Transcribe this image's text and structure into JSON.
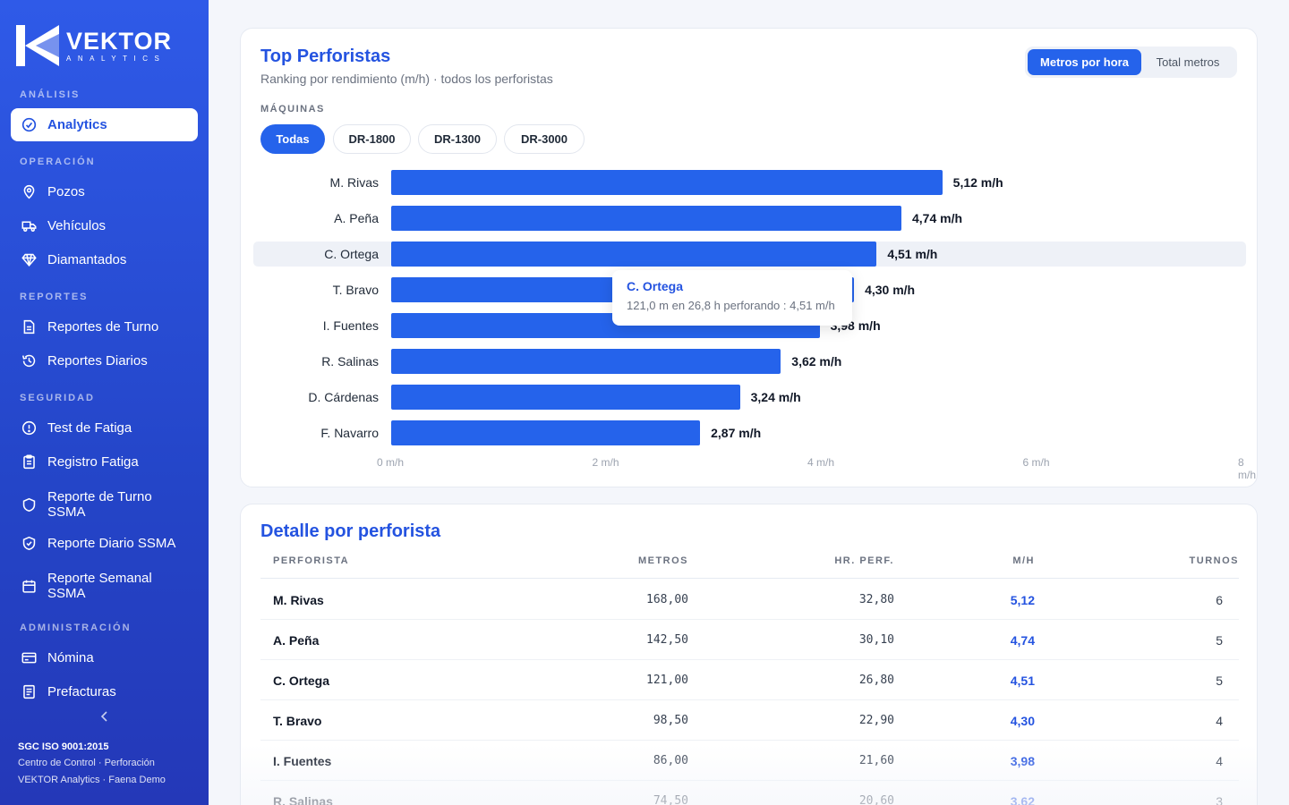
{
  "brand": {
    "name": "VEKTOR",
    "sub": "ANALYTICS"
  },
  "sidebar": {
    "sections": {
      "analisis": "ANÁLISIS",
      "operacion": "OPERACIÓN",
      "reportes": "REPORTES",
      "seguridad": "SEGURIDAD",
      "admin": "ADMINISTRACIÓN"
    },
    "items": [
      {
        "label": "Analytics",
        "icon": "check-circle-icon"
      },
      {
        "label": "Pozos",
        "icon": "map-pin-icon"
      },
      {
        "label": "Vehículos",
        "icon": "truck-icon"
      },
      {
        "label": "Diamantados",
        "icon": "diamond-icon"
      },
      {
        "label": "Reportes de Turno",
        "icon": "document-icon"
      },
      {
        "label": "Reportes Diarios",
        "icon": "history-icon"
      },
      {
        "label": "Test de Fatiga",
        "icon": "alert-circle-icon"
      },
      {
        "label": "Registro Fatiga",
        "icon": "clipboard-icon"
      },
      {
        "label": "Reporte de Turno SSMA",
        "icon": "shield-icon"
      },
      {
        "label": "Reporte Diario SSMA",
        "icon": "shield-check-icon"
      },
      {
        "label": "Reporte Semanal SSMA",
        "icon": "calendar-icon"
      },
      {
        "label": "Nómina",
        "icon": "card-icon"
      },
      {
        "label": "Prefacturas",
        "icon": "invoice-icon"
      }
    ],
    "footer": {
      "line1": "SGC ISO 9001:2015",
      "line2": "Centro de Control · Perforación",
      "line3": "VEKTOR Analytics · Faena Demo"
    }
  },
  "top": {
    "title": "Top Perforistas",
    "subtitle": "Ranking por rendimiento (m/h) · todos los perforistas",
    "toggle": {
      "active": "Metros por hora",
      "inactive": "Total metros"
    },
    "machines_label": "MÁQUINAS",
    "machines": [
      "Todas",
      "DR-1800",
      "DR-1300",
      "DR-3000"
    ],
    "tooltip": {
      "title": "C. Ortega",
      "text": "121,0 m en 26,8 h perforando : 4,51 m/h"
    }
  },
  "chart_data": {
    "type": "bar",
    "orientation": "horizontal",
    "categories": [
      "M. Rivas",
      "A. Peña",
      "C. Ortega",
      "T. Bravo",
      "I. Fuentes",
      "R. Salinas",
      "D. Cárdenas",
      "F. Navarro"
    ],
    "values": [
      5.12,
      4.74,
      4.51,
      4.3,
      3.98,
      3.62,
      3.24,
      2.87
    ],
    "value_labels": [
      "5,12 m/h",
      "4,74 m/h",
      "4,51 m/h",
      "4,30 m/h",
      "3,98 m/h",
      "3,62 m/h",
      "3,24 m/h",
      "2,87 m/h"
    ],
    "xlim": [
      0,
      8
    ],
    "ticks": [
      "0 m/h",
      "2 m/h",
      "4 m/h",
      "6 m/h",
      "8 m/h"
    ],
    "highlighted": "C. Ortega"
  },
  "detail": {
    "title": "Detalle por perforista",
    "columns": [
      "PERFORISTA",
      "METROS",
      "HR. PERF.",
      "M/H",
      "TURNOS"
    ],
    "rows": [
      {
        "name": "M. Rivas",
        "metros": "168,00",
        "hr": "32,80",
        "mh": "5,12",
        "turnos": "6"
      },
      {
        "name": "A. Peña",
        "metros": "142,50",
        "hr": "30,10",
        "mh": "4,74",
        "turnos": "5"
      },
      {
        "name": "C. Ortega",
        "metros": "121,00",
        "hr": "26,80",
        "mh": "4,51",
        "turnos": "5"
      },
      {
        "name": "T. Bravo",
        "metros": "98,50",
        "hr": "22,90",
        "mh": "4,30",
        "turnos": "4"
      },
      {
        "name": "I. Fuentes",
        "metros": "86,00",
        "hr": "21,60",
        "mh": "3,98",
        "turnos": "4"
      },
      {
        "name": "R. Salinas",
        "metros": "74,50",
        "hr": "20,60",
        "mh": "3,62",
        "turnos": "3"
      }
    ]
  }
}
